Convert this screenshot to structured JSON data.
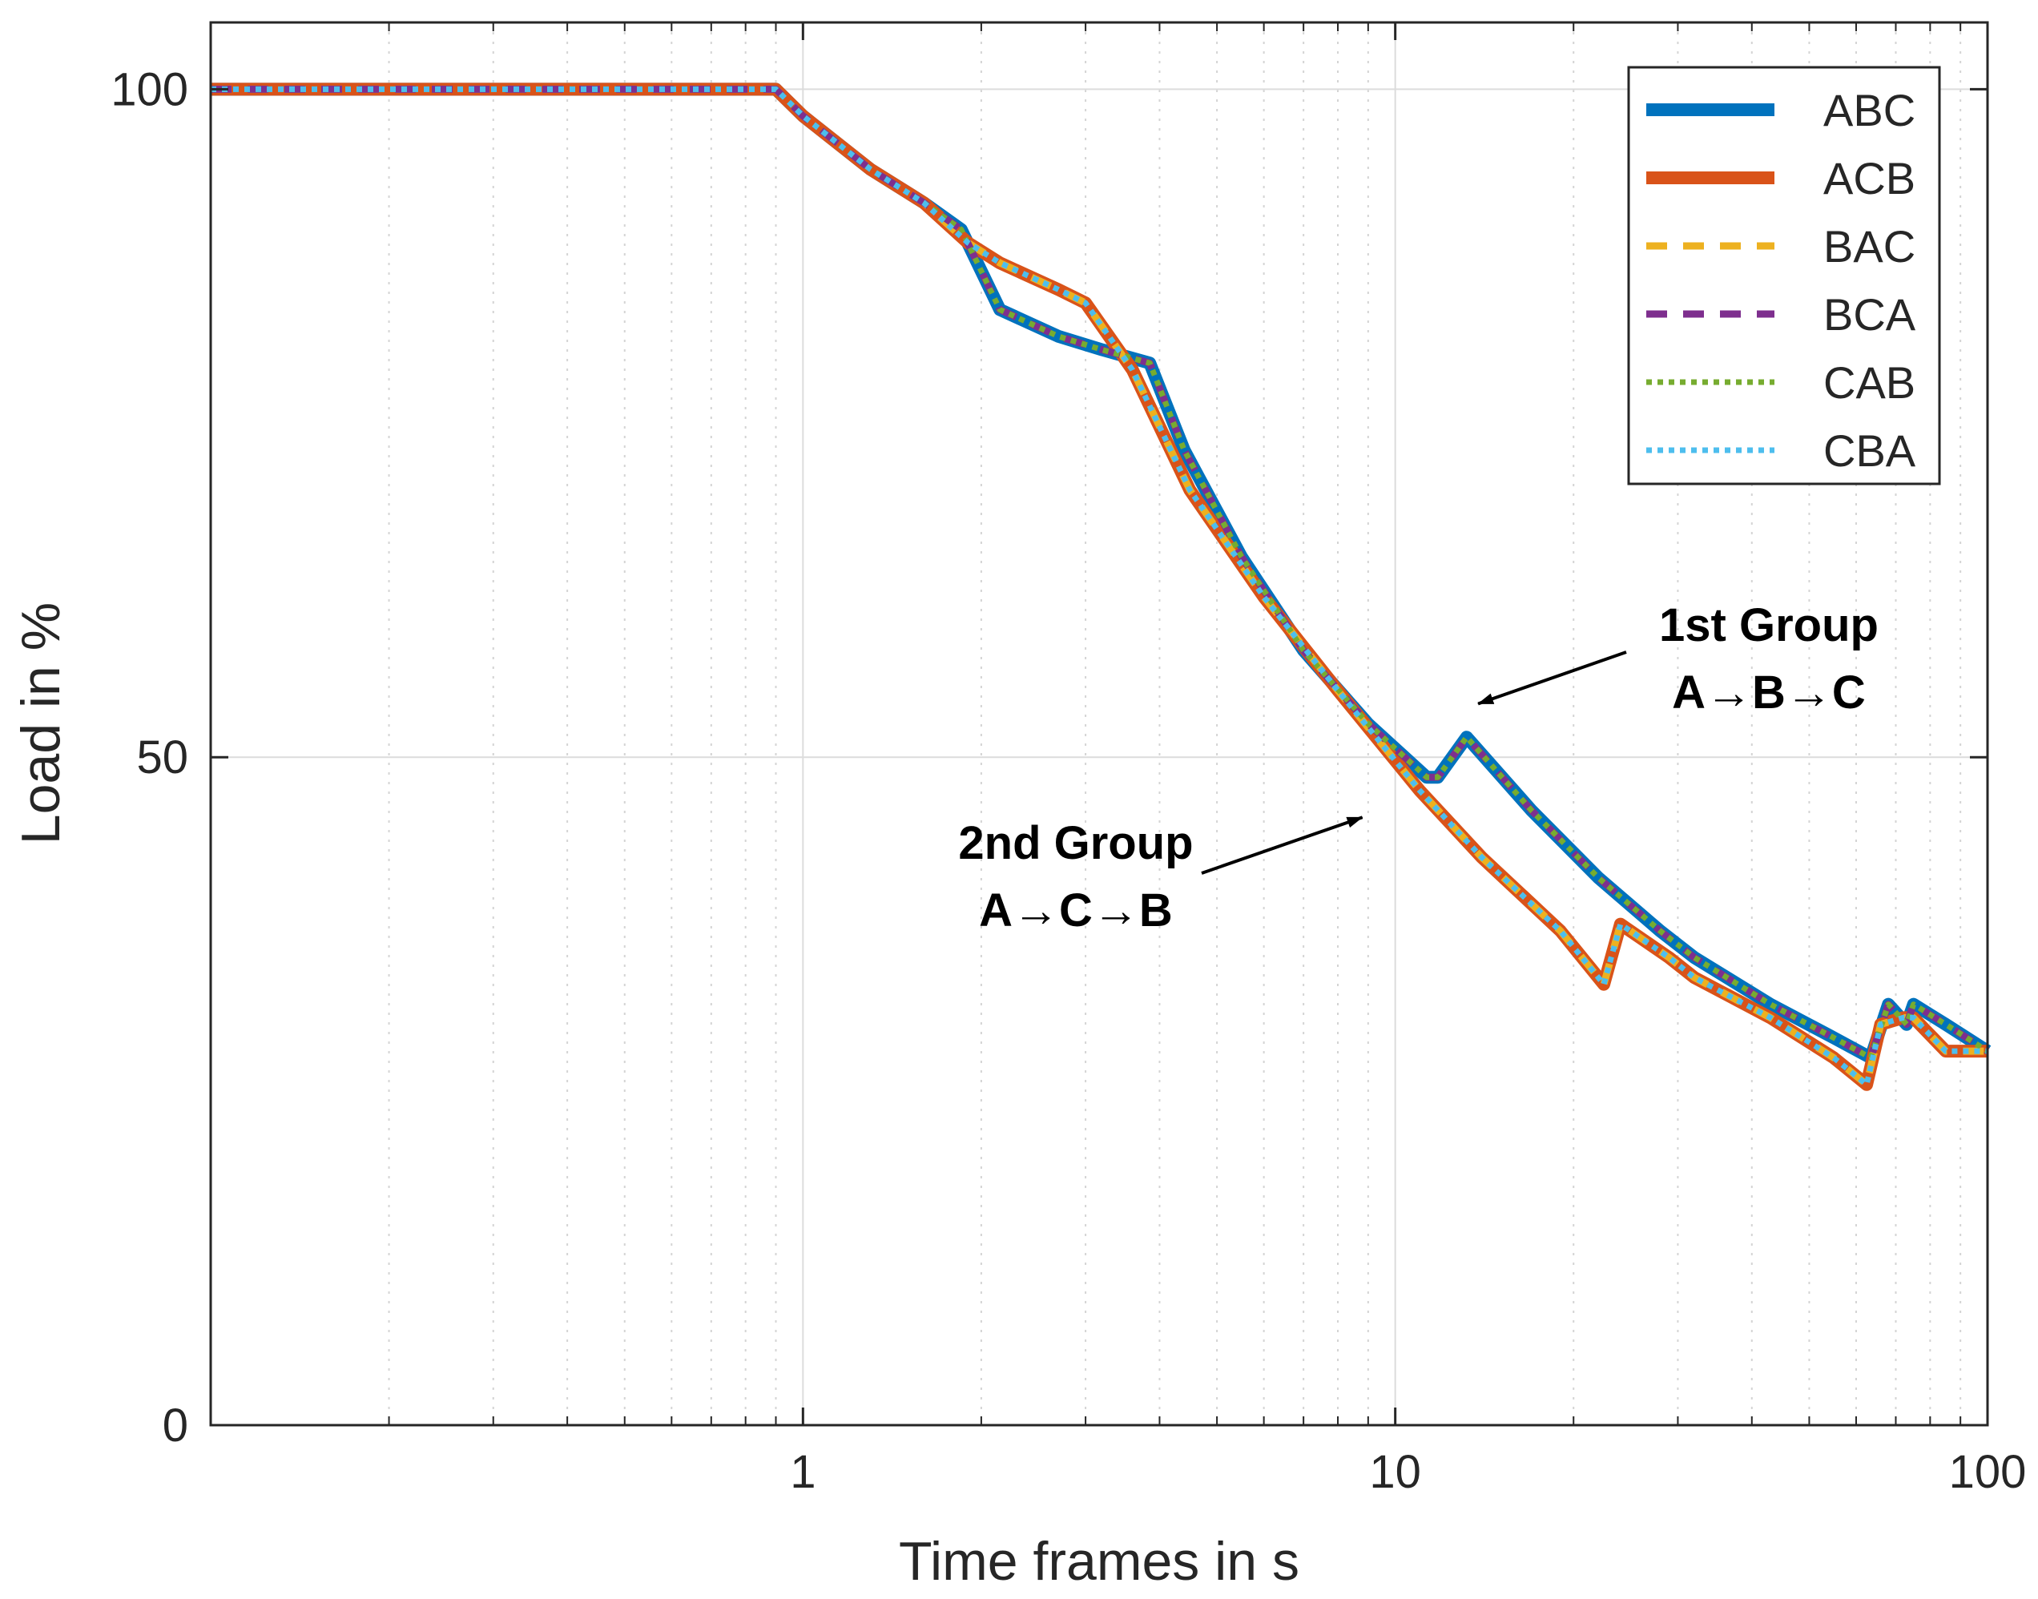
{
  "chart_data": {
    "type": "line",
    "xscale": "log",
    "xlabel": "Time frames in s",
    "ylabel": "Load in %",
    "xlim": [
      0.1,
      100
    ],
    "ylim": [
      0,
      105
    ],
    "xticks": [
      1,
      10,
      100
    ],
    "xtick_labels": [
      "1",
      "10",
      "100"
    ],
    "yticks": [
      0,
      50,
      100
    ],
    "ytick_labels": [
      "0",
      "50",
      "100"
    ],
    "grid": true,
    "legend_position": "top-right",
    "series": [
      {
        "name": "ABC",
        "color": "#0072BD",
        "style": "solid",
        "group": 1
      },
      {
        "name": "ACB",
        "color": "#D95319",
        "style": "solid",
        "group": 2
      },
      {
        "name": "BAC",
        "color": "#EDB120",
        "style": "dashed",
        "group": 2
      },
      {
        "name": "BCA",
        "color": "#7E2F8E",
        "style": "dashed",
        "group": 1
      },
      {
        "name": "CAB",
        "color": "#77AC30",
        "style": "dotted",
        "group": 1
      },
      {
        "name": "CBA",
        "color": "#4DBEEE",
        "style": "dotted",
        "group": 2
      }
    ],
    "group_curves": {
      "group1": {
        "x": [
          0.1,
          0.9,
          1.0,
          1.3,
          1.6,
          1.85,
          2.15,
          2.7,
          3.2,
          3.85,
          4.4,
          5.5,
          7.0,
          9.0,
          11.3,
          11.8,
          13.2,
          17,
          22,
          28,
          32,
          43,
          55,
          63.5,
          68,
          73,
          75,
          85,
          100
        ],
        "y": [
          100,
          100,
          98,
          94,
          91.5,
          89.5,
          83.5,
          81.5,
          80.5,
          79.5,
          73,
          65,
          58,
          52.5,
          48.5,
          48.5,
          51.5,
          46,
          41,
          37,
          35,
          31.5,
          29,
          27.5,
          31.5,
          30,
          31.5,
          30,
          28
        ]
      },
      "group2": {
        "x": [
          0.1,
          0.9,
          1.0,
          1.3,
          1.6,
          1.9,
          2.15,
          2.7,
          3.0,
          3.6,
          4.5,
          6,
          8,
          11,
          14,
          19,
          22.5,
          24,
          29,
          32,
          43,
          55,
          62.5,
          66,
          72,
          75,
          85,
          100
        ],
        "y": [
          100,
          100,
          98,
          94,
          91.5,
          88.5,
          87,
          85,
          84,
          79,
          70,
          62,
          55,
          47.5,
          42.5,
          37,
          33,
          37.5,
          35,
          33.5,
          30.5,
          27.5,
          25.5,
          30,
          30.5,
          30.5,
          28,
          28
        ]
      }
    },
    "annotations": [
      {
        "line1": "1st Group",
        "line2": "A→B→C",
        "arrow_target": [
          13.8,
          54
        ]
      },
      {
        "line1": "2nd Group",
        "line2": "A→C→B",
        "arrow_target": [
          8.8,
          45.5
        ]
      }
    ]
  }
}
